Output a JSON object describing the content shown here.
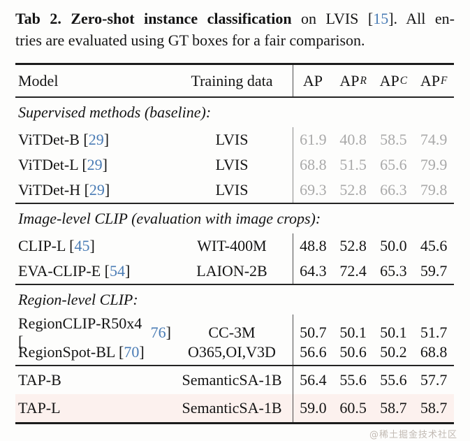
{
  "colors": {
    "accent_blue": "#4a7cb5",
    "muted_value": "#a9a9a9",
    "highlight_row": "#fcf1ee",
    "rule_dark": "#1c1c1c",
    "text": "#141414",
    "watermark": "#c2bab3",
    "page_bg": "#fdfdfc"
  },
  "caption": {
    "tag_title": "Tab 2. Zero-shot instance classification",
    "pre_cite": " on LVIS [",
    "cite": "15",
    "post_cite": "]. All en-",
    "line2": "tries are evaluated using GT boxes for a fair comparison."
  },
  "table": {
    "header": {
      "model": "Model",
      "training": "Training data",
      "metrics": [
        {
          "base": "AP",
          "sup": ""
        },
        {
          "base": "AP",
          "sup": "R"
        },
        {
          "base": "AP",
          "sup": "C"
        },
        {
          "base": "AP",
          "sup": "F"
        }
      ]
    },
    "sections": [
      {
        "heading": "Supervised methods (baseline):",
        "rows": [
          {
            "pre": "ViTDet-B [",
            "cite": "29",
            "post": "]",
            "training": "LVIS",
            "values": [
              "61.9",
              "40.8",
              "58.5",
              "74.9"
            ]
          },
          {
            "pre": "ViTDet-L [",
            "cite": "29",
            "post": "]",
            "training": "LVIS",
            "values": [
              "68.8",
              "51.5",
              "65.6",
              "79.9"
            ]
          },
          {
            "pre": "ViTDet-H [",
            "cite": "29",
            "post": "]",
            "training": "LVIS",
            "values": [
              "69.3",
              "52.8",
              "66.3",
              "79.8"
            ]
          }
        ]
      },
      {
        "heading": "Image-level CLIP (evaluation with image crops):",
        "rows": [
          {
            "pre": "CLIP-L [",
            "cite": "45",
            "post": "]",
            "training": "WIT-400M",
            "values": [
              "48.8",
              "52.8",
              "50.0",
              "45.6"
            ]
          },
          {
            "pre": "EVA-CLIP-E [",
            "cite": "54",
            "post": "]",
            "training": "LAION-2B",
            "values": [
              "64.3",
              "72.4",
              "65.3",
              "59.7"
            ]
          }
        ]
      },
      {
        "heading": "Region-level CLIP:",
        "rows": [
          {
            "pre": "RegionCLIP-R50x4 [",
            "cite": "76",
            "post": "]",
            "training": "CC-3M",
            "values": [
              "50.7",
              "50.1",
              "50.1",
              "51.7"
            ]
          },
          {
            "pre": "RegionSpot-BL [",
            "cite": "70",
            "post": "]",
            "training": "O365,OI,V3D",
            "values": [
              "56.6",
              "50.6",
              "50.2",
              "68.8"
            ]
          }
        ]
      },
      {
        "heading": "",
        "rows": [
          {
            "pre": "TAP-B",
            "training": "SemanticSA-1B",
            "values": [
              "56.4",
              "55.6",
              "55.6",
              "57.7"
            ]
          },
          {
            "pre": "TAP-L",
            "training": "SemanticSA-1B",
            "values": [
              "59.0",
              "60.5",
              "58.7",
              "58.7"
            ]
          }
        ]
      }
    ]
  },
  "watermark": "@稀土掘金技术社区"
}
